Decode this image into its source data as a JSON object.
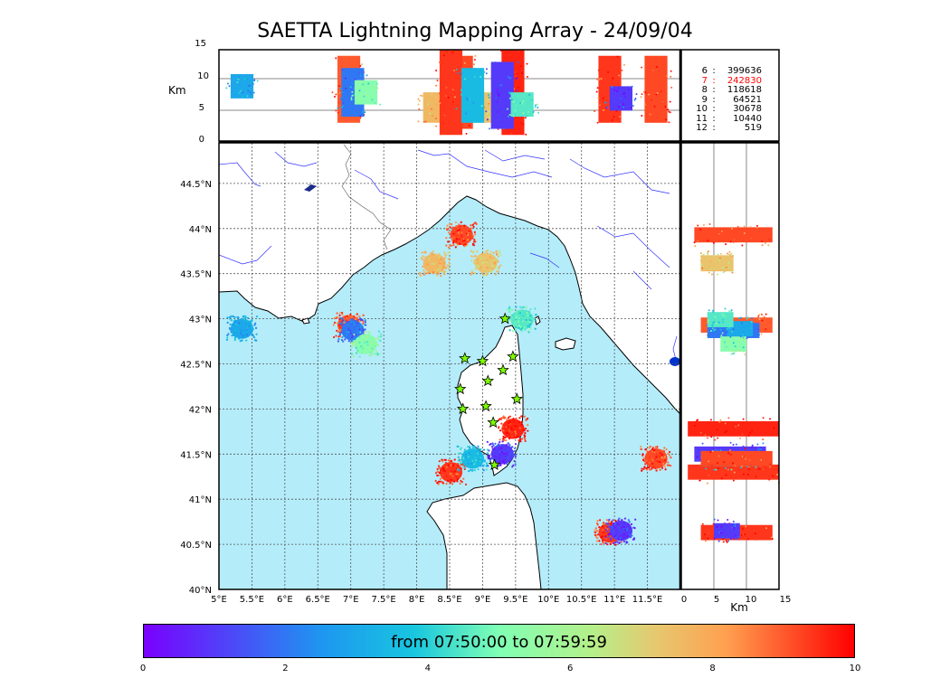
{
  "title": "SAETTA Lightning Mapping Array - 24/09/04",
  "colors": {
    "sea": "#b4ecfa",
    "land": "#ffffff",
    "coast": "#000000",
    "rivers": "#3333ff",
    "borders": "#555555",
    "station_star": "#7cfc00",
    "highlight_stat": "#ff0000"
  },
  "altitude_panel": {
    "ylabel": "Km",
    "yticks": [
      "0",
      "5",
      "10",
      "15"
    ]
  },
  "side_panel": {
    "xlabel": "Km",
    "xticks": [
      "0",
      "5",
      "10",
      "15"
    ]
  },
  "map": {
    "lon_ticks": [
      "5°E",
      "5.5°E",
      "6°E",
      "6.5°E",
      "7°E",
      "7.5°E",
      "8°E",
      "8.5°E",
      "9°E",
      "9.5°E",
      "10°E",
      "10.5°E",
      "11°E",
      "11.5°E"
    ],
    "lat_ticks": [
      "40°N",
      "40.5°N",
      "41°N",
      "41.5°N",
      "42°N",
      "42.5°N",
      "43°N",
      "43.5°N",
      "44°N",
      "44.5°N"
    ],
    "lon_range": [
      5.0,
      12.0
    ],
    "lat_range": [
      40.0,
      44.95
    ],
    "stations": [
      {
        "lon": 9.34,
        "lat": 43.0
      },
      {
        "lon": 8.73,
        "lat": 42.56
      },
      {
        "lon": 9.0,
        "lat": 42.53
      },
      {
        "lon": 9.46,
        "lat": 42.58
      },
      {
        "lon": 9.31,
        "lat": 42.43
      },
      {
        "lon": 9.08,
        "lat": 42.31
      },
      {
        "lon": 8.66,
        "lat": 42.22
      },
      {
        "lon": 9.52,
        "lat": 42.11
      },
      {
        "lon": 8.7,
        "lat": 42.0
      },
      {
        "lon": 9.05,
        "lat": 42.03
      },
      {
        "lon": 9.16,
        "lat": 41.85
      },
      {
        "lon": 9.18,
        "lat": 41.38
      }
    ]
  },
  "stats": [
    {
      "key": "6",
      "value": "399636",
      "highlight": false
    },
    {
      "key": "7",
      "value": "242830",
      "highlight": true
    },
    {
      "key": "8",
      "value": "118618",
      "highlight": false
    },
    {
      "key": "9",
      "value": "64521",
      "highlight": false
    },
    {
      "key": "10",
      "value": "30678",
      "highlight": false
    },
    {
      "key": "11",
      "value": "10440",
      "highlight": false
    },
    {
      "key": "12",
      "value": "519",
      "highlight": false
    }
  ],
  "colorbar": {
    "label": "from 07:50:00 to 07:59:59",
    "ticks": [
      "0",
      "2",
      "4",
      "6",
      "8",
      "10"
    ],
    "range": [
      0,
      10
    ]
  },
  "chart_data": {
    "type": "scatter",
    "title": "SAETTA Lightning Mapping Array - 24/09/04",
    "description_fields": {
      "color_scale": "time in minutes after 07:50:00",
      "xlim": [
        5.0,
        12.0
      ],
      "ylim": [
        40.0,
        44.95
      ],
      "altitude_lim_km": [
        0,
        15
      ]
    },
    "clusters": [
      {
        "lon": 8.68,
        "lat": 43.93,
        "alt_km": [
          2,
          14
        ],
        "time_min": 9.2
      },
      {
        "lon": 8.27,
        "lat": 43.61,
        "alt_km": [
          3,
          8
        ],
        "time_min": 7.6
      },
      {
        "lon": 9.05,
        "lat": 43.62,
        "alt_km": [
          3,
          8
        ],
        "time_min": 7.3
      },
      {
        "lon": 6.97,
        "lat": 42.93,
        "alt_km": [
          3,
          14
        ],
        "time_min": 9.0
      },
      {
        "lon": 7.03,
        "lat": 42.87,
        "alt_km": [
          4,
          12
        ],
        "time_min": 2.0
      },
      {
        "lon": 7.23,
        "lat": 42.72,
        "alt_km": [
          6,
          10
        ],
        "time_min": 5.2
      },
      {
        "lon": 5.35,
        "lat": 42.89,
        "alt_km": [
          7,
          11
        ],
        "time_min": 3.0
      },
      {
        "lon": 9.46,
        "lat": 41.78,
        "alt_km": [
          1,
          15
        ],
        "time_min": 9.6
      },
      {
        "lon": 9.3,
        "lat": 41.5,
        "alt_km": [
          2,
          13
        ],
        "time_min": 1.0
      },
      {
        "lon": 8.52,
        "lat": 41.3,
        "alt_km": [
          1,
          15
        ],
        "time_min": 9.4
      },
      {
        "lon": 8.85,
        "lat": 41.45,
        "alt_km": [
          3,
          12
        ],
        "time_min": 3.5
      },
      {
        "lon": 11.63,
        "lat": 41.45,
        "alt_km": [
          3,
          14
        ],
        "time_min": 9.2
      },
      {
        "lon": 10.93,
        "lat": 40.63,
        "alt_km": [
          3,
          14
        ],
        "time_min": 9.4
      },
      {
        "lon": 11.1,
        "lat": 40.65,
        "alt_km": [
          5,
          9
        ],
        "time_min": 1.0
      },
      {
        "lon": 9.6,
        "lat": 42.99,
        "alt_km": [
          4,
          8
        ],
        "time_min": 4.5
      }
    ]
  }
}
